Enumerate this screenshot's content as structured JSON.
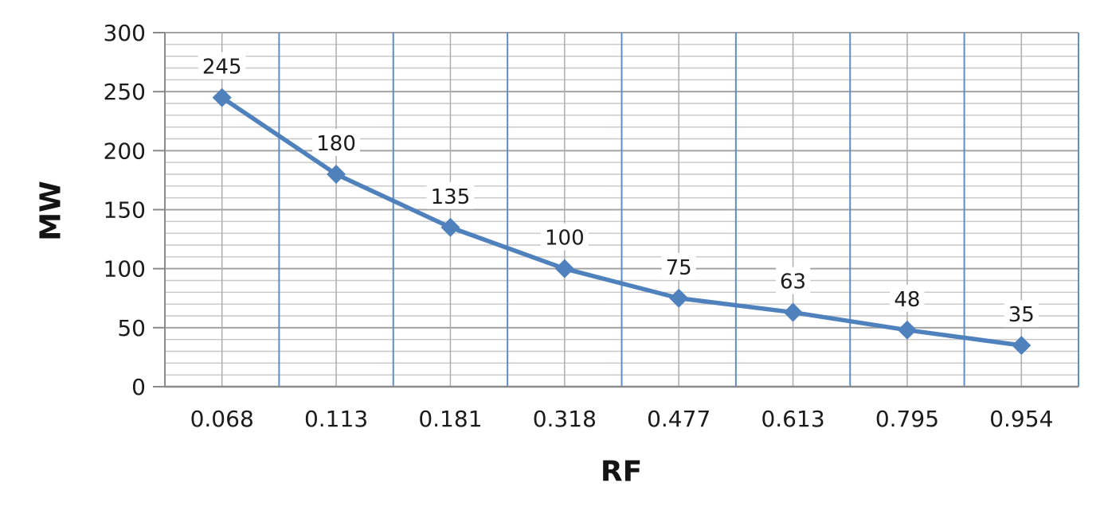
{
  "chart_data": {
    "type": "line",
    "title": "",
    "xlabel": "RF",
    "ylabel": "MW",
    "categories": [
      "0.068",
      "0.113",
      "0.181",
      "0.318",
      "0.477",
      "0.613",
      "0.795",
      "0.954"
    ],
    "series": [
      {
        "name": "MW",
        "values": [
          245,
          180,
          135,
          100,
          75,
          63,
          48,
          35
        ]
      }
    ],
    "data_labels": [
      "245",
      "180",
      "135",
      "100",
      "75",
      "63",
      "48",
      "35"
    ],
    "y_ticks": [
      "0",
      "50",
      "100",
      "150",
      "200",
      "250",
      "300"
    ],
    "ylim": [
      0,
      300
    ],
    "y_major_step": 50,
    "y_minor_step": 10,
    "grid": "major-and-minor",
    "legend_position": "none",
    "marker": "diamond"
  },
  "colors": {
    "series_line": "#4F81BD",
    "marker_fill": "#4F81BD",
    "grid_major_h": "#A3A3A3",
    "grid_minor_h": "#C7C7C7",
    "grid_major_v": "#5F8DC9",
    "grid_minor_v": "#ADADAD",
    "axis_line": "#8A8A8A",
    "text": "#1B1B1B",
    "label_bg": "#FFFFFF",
    "background": "#FFFFFF"
  }
}
